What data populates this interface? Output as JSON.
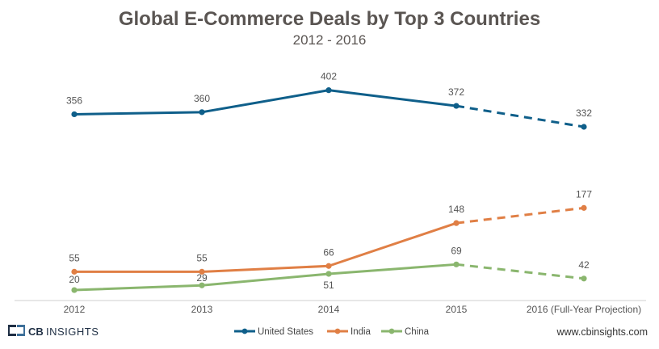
{
  "chart_data": {
    "type": "line",
    "title": "Global E-Commerce Deals by Top 3 Countries",
    "subtitle": "2012 - 2016",
    "categories": [
      "2012",
      "2013",
      "2014",
      "2015",
      "2016 (Full-Year Projection)"
    ],
    "projection_from_index": 3,
    "series": [
      {
        "name": "United States",
        "color": "#0f5f8a",
        "values": [
          356,
          360,
          402,
          372,
          332
        ]
      },
      {
        "name": "India",
        "color": "#e07f45",
        "values": [
          55,
          55,
          66,
          148,
          177
        ]
      },
      {
        "name": "China",
        "color": "#8ab66e",
        "values": [
          20,
          29,
          51,
          69,
          42
        ]
      }
    ],
    "xlabel": "",
    "ylabel": "",
    "ylim": [
      0,
      420
    ],
    "grid": false,
    "legend": "bottom-center"
  },
  "footer": {
    "logo_cb": "CB",
    "logo_text": "INSIGHTS",
    "website": "www.cbinsights.com"
  }
}
